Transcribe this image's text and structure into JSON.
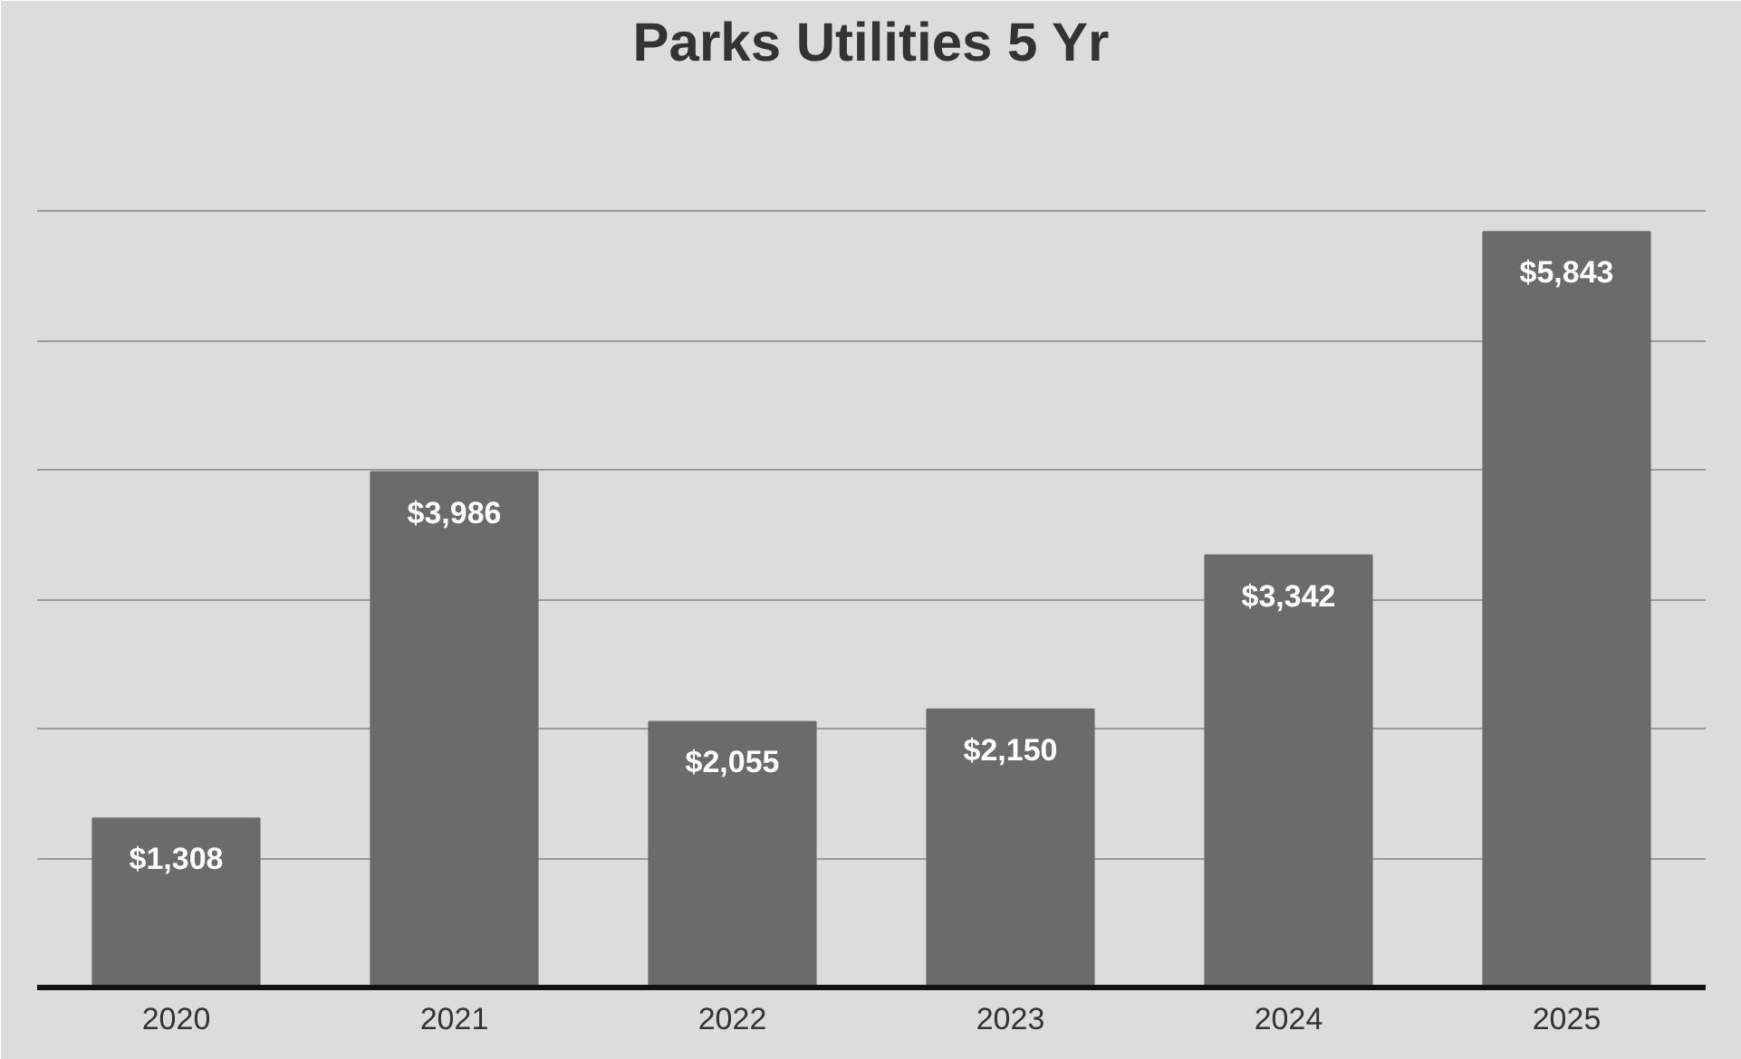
{
  "chart_data": {
    "type": "bar",
    "title": "Parks Utilities 5 Yr",
    "categories": [
      "2020",
      "2021",
      "2022",
      "2023",
      "2024",
      "2025"
    ],
    "values": [
      1308,
      3986,
      2055,
      2150,
      3342,
      5843
    ],
    "value_labels": [
      "$1,308",
      "$3,986",
      "$2,055",
      "$2,150",
      "$3,342",
      "$5,843"
    ],
    "color": "#6b6b6b",
    "ylim": [
      0,
      7000
    ],
    "yticks": [
      {
        "value": 0,
        "label": null
      },
      {
        "value": 1000,
        "label": null
      },
      {
        "value": 2000,
        "label": null
      },
      {
        "value": 3000,
        "label": null
      },
      {
        "value": 4000,
        "label": null
      },
      {
        "value": 5000,
        "label": null
      },
      {
        "value": 6000,
        "label": null
      },
      {
        "value": 7000,
        "label": null
      }
    ],
    "grid": "y",
    "tick_labels": "x"
  }
}
